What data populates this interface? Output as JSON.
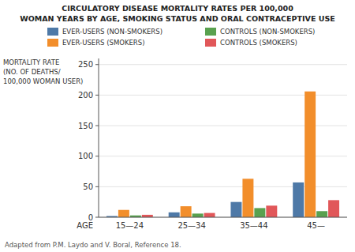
{
  "chart_data": {
    "type": "bar",
    "title": "CIRCULATORY DISEASE MORTALITY RATES PER 100,000",
    "subtitle": "WOMAN YEARS BY AGE, SMOKING STATUS AND ORAL CONTRACEPTIVE USE",
    "x_label": "AGE",
    "y_label": [
      "MORTALITY RATE",
      "(NO. OF DEATHS/",
      "100,000 WOMAN USER)"
    ],
    "annotations": [
      "Adapted from P.M. Laydo and V. Boral, Reference 18."
    ],
    "categories": [
      "15—24",
      "25—34",
      "35—44",
      "45—"
    ],
    "series": [
      {
        "name": "EVER-USERS (NON-SMOKERS)",
        "values": [
          2,
          8,
          25,
          57
        ]
      },
      {
        "name": "EVER-USERS (SMOKERS)",
        "values": [
          12,
          18,
          63,
          206
        ]
      },
      {
        "name": "CONTROLS (NON-SMOKERS)",
        "values": [
          3,
          6,
          15,
          10
        ]
      },
      {
        "name": "CONTROLS (SMOKERS)",
        "values": [
          4,
          7,
          19,
          28
        ]
      }
    ],
    "ylim": [
      0,
      260
    ],
    "yticks": [
      0,
      50,
      100,
      150,
      200,
      250
    ],
    "grid": true,
    "legend": "top"
  }
}
